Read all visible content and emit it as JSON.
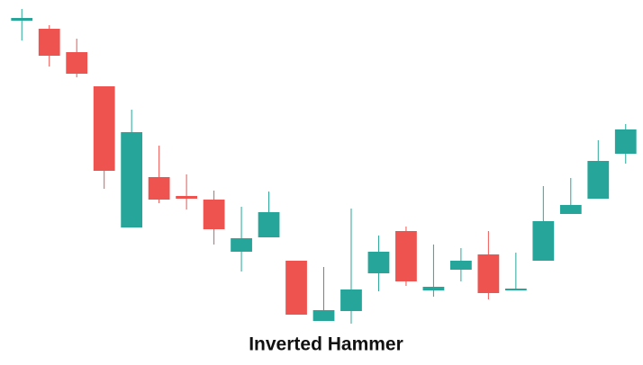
{
  "chart_data": {
    "type": "candlestick",
    "title": "Inverted Hammer",
    "categories": [
      null,
      null,
      null,
      null,
      null,
      null,
      null,
      null,
      null,
      null,
      null,
      null,
      null,
      null,
      null,
      null,
      null,
      null,
      null,
      null,
      null,
      null,
      null
    ],
    "open": [
      377,
      368,
      342,
      304,
      147,
      203,
      182,
      178,
      120,
      136,
      110,
      43,
      54,
      96,
      143,
      77,
      100,
      117,
      77,
      110,
      162,
      179,
      229
    ],
    "high": [
      390,
      372,
      357,
      304,
      278,
      238,
      206,
      188,
      170,
      187,
      110,
      103,
      168,
      138,
      148,
      128,
      124,
      143,
      119,
      193,
      202,
      244,
      262
    ],
    "low": [
      355,
      326,
      314,
      190,
      147,
      174,
      167,
      128,
      98,
      136,
      50,
      43,
      40,
      76,
      82,
      70,
      87,
      67,
      77,
      110,
      162,
      179,
      218
    ],
    "close": [
      380,
      338,
      318,
      210,
      253,
      178,
      179,
      145,
      135,
      164,
      50,
      55,
      78,
      120,
      87,
      81,
      110,
      74,
      79,
      154,
      172,
      221,
      256
    ],
    "up_color": "#26a69a",
    "down_color": "#ef5350",
    "ylim": [
      0,
      400
    ]
  }
}
